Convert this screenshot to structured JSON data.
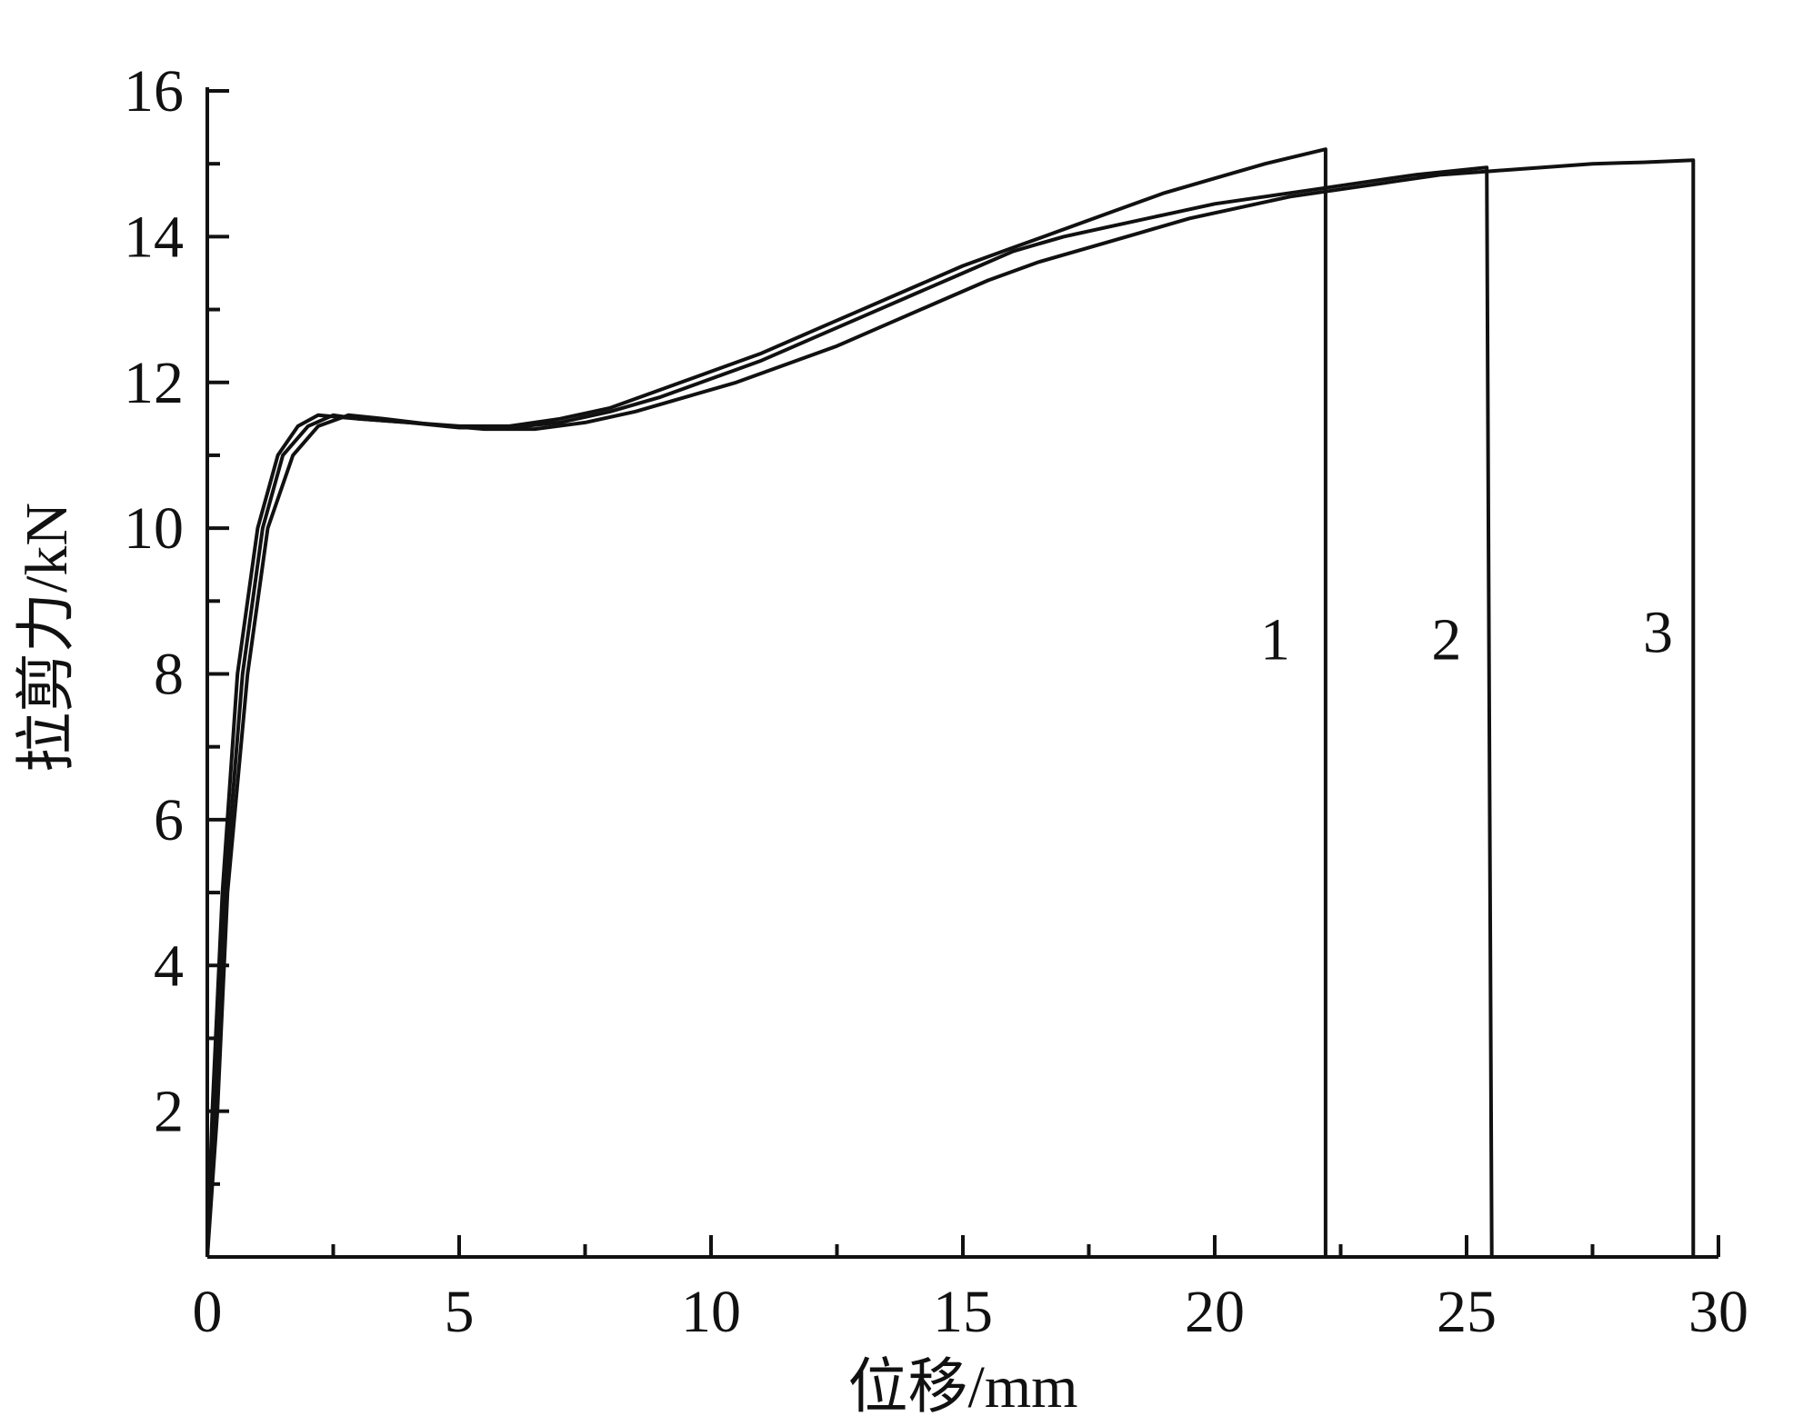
{
  "chart_data": {
    "type": "line",
    "title": "",
    "xlabel": "位移/mm",
    "ylabel": "拉剪力/kN",
    "xlim": [
      0,
      30
    ],
    "ylim": [
      0,
      16
    ],
    "x_ticks": [
      0,
      5,
      10,
      15,
      20,
      25,
      30
    ],
    "y_ticks": [
      2,
      4,
      6,
      8,
      10,
      12,
      14,
      16
    ],
    "grid": false,
    "legend": "none",
    "line_color": "#111111",
    "series": [
      {
        "name": "1",
        "label_point": [
          21.2,
          8.2
        ],
        "points": [
          [
            0,
            0
          ],
          [
            0.1,
            2
          ],
          [
            0.3,
            5
          ],
          [
            0.6,
            8
          ],
          [
            1.0,
            10
          ],
          [
            1.4,
            11
          ],
          [
            1.8,
            11.4
          ],
          [
            2.2,
            11.55
          ],
          [
            3,
            11.5
          ],
          [
            4,
            11.45
          ],
          [
            5,
            11.4
          ],
          [
            6,
            11.4
          ],
          [
            7,
            11.5
          ],
          [
            8,
            11.65
          ],
          [
            9,
            11.9
          ],
          [
            10,
            12.15
          ],
          [
            11,
            12.4
          ],
          [
            12,
            12.7
          ],
          [
            13,
            13.0
          ],
          [
            14,
            13.3
          ],
          [
            15,
            13.6
          ],
          [
            16,
            13.85
          ],
          [
            17,
            14.1
          ],
          [
            18,
            14.35
          ],
          [
            19,
            14.6
          ],
          [
            20,
            14.8
          ],
          [
            21,
            15.0
          ],
          [
            22.2,
            15.2
          ],
          [
            22.2,
            0
          ]
        ]
      },
      {
        "name": "2",
        "label_point": [
          24.6,
          8.2
        ],
        "points": [
          [
            0,
            0
          ],
          [
            0.15,
            2
          ],
          [
            0.35,
            5
          ],
          [
            0.7,
            8
          ],
          [
            1.1,
            10
          ],
          [
            1.5,
            11
          ],
          [
            2.0,
            11.4
          ],
          [
            2.5,
            11.55
          ],
          [
            3,
            11.5
          ],
          [
            4,
            11.45
          ],
          [
            5,
            11.38
          ],
          [
            6,
            11.38
          ],
          [
            7,
            11.45
          ],
          [
            8,
            11.6
          ],
          [
            9,
            11.8
          ],
          [
            10,
            12.05
          ],
          [
            11,
            12.3
          ],
          [
            12,
            12.6
          ],
          [
            13,
            12.9
          ],
          [
            14,
            13.2
          ],
          [
            15,
            13.5
          ],
          [
            16,
            13.8
          ],
          [
            17,
            14.0
          ],
          [
            18,
            14.15
          ],
          [
            19,
            14.3
          ],
          [
            20,
            14.45
          ],
          [
            21,
            14.55
          ],
          [
            22,
            14.65
          ],
          [
            23,
            14.75
          ],
          [
            24,
            14.85
          ],
          [
            25.4,
            14.95
          ],
          [
            25.5,
            0
          ]
        ]
      },
      {
        "name": "3",
        "label_point": [
          28.8,
          8.3
        ],
        "points": [
          [
            0,
            0
          ],
          [
            0.2,
            2
          ],
          [
            0.4,
            5
          ],
          [
            0.8,
            8
          ],
          [
            1.2,
            10
          ],
          [
            1.7,
            11
          ],
          [
            2.2,
            11.4
          ],
          [
            2.8,
            11.55
          ],
          [
            3.5,
            11.5
          ],
          [
            4.5,
            11.42
          ],
          [
            5.5,
            11.36
          ],
          [
            6.5,
            11.36
          ],
          [
            7.5,
            11.45
          ],
          [
            8.5,
            11.6
          ],
          [
            9.5,
            11.8
          ],
          [
            10.5,
            12.0
          ],
          [
            11.5,
            12.25
          ],
          [
            12.5,
            12.5
          ],
          [
            13.5,
            12.8
          ],
          [
            14.5,
            13.1
          ],
          [
            15.5,
            13.4
          ],
          [
            16.5,
            13.65
          ],
          [
            17.5,
            13.85
          ],
          [
            18.5,
            14.05
          ],
          [
            19.5,
            14.25
          ],
          [
            20.5,
            14.4
          ],
          [
            21.5,
            14.55
          ],
          [
            22.5,
            14.65
          ],
          [
            23.5,
            14.75
          ],
          [
            24.5,
            14.85
          ],
          [
            25.5,
            14.9
          ],
          [
            26.5,
            14.95
          ],
          [
            27.5,
            15.0
          ],
          [
            28.5,
            15.02
          ],
          [
            29.5,
            15.05
          ],
          [
            29.5,
            0
          ]
        ]
      }
    ]
  }
}
